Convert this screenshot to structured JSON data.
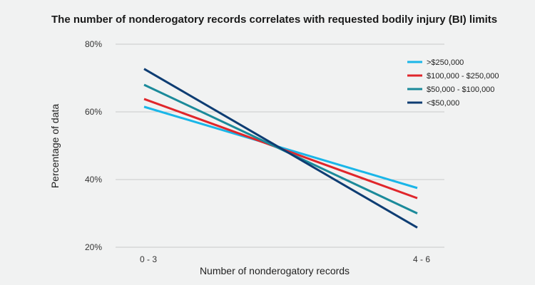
{
  "chart_data": {
    "type": "line",
    "title": "The number of nonderogatory records correlates with requested bodily injury (BI) limits",
    "xlabel": "Number of nonderogatory records",
    "ylabel": "Percentage of data",
    "categories": [
      "0 - 3",
      "4 - 6"
    ],
    "ylim": [
      20,
      80
    ],
    "yticks": [
      20,
      40,
      60,
      80
    ],
    "ytick_labels": [
      "20%",
      "40%",
      "60%",
      "80%"
    ],
    "grid": true,
    "legend": "top-right",
    "series": [
      {
        "name": ">$250,000",
        "values": [
          61.5,
          37.5
        ],
        "color": "#1ab6e8"
      },
      {
        "name": "$100,000 - $250,000",
        "values": [
          63.8,
          34.5
        ],
        "color": "#e0262b"
      },
      {
        "name": "$50,000 - $100,000",
        "values": [
          68.0,
          30.0
        ],
        "color": "#1b8a9a"
      },
      {
        "name": "<$50,000",
        "values": [
          72.7,
          25.8
        ],
        "color": "#0e3d73"
      }
    ]
  }
}
